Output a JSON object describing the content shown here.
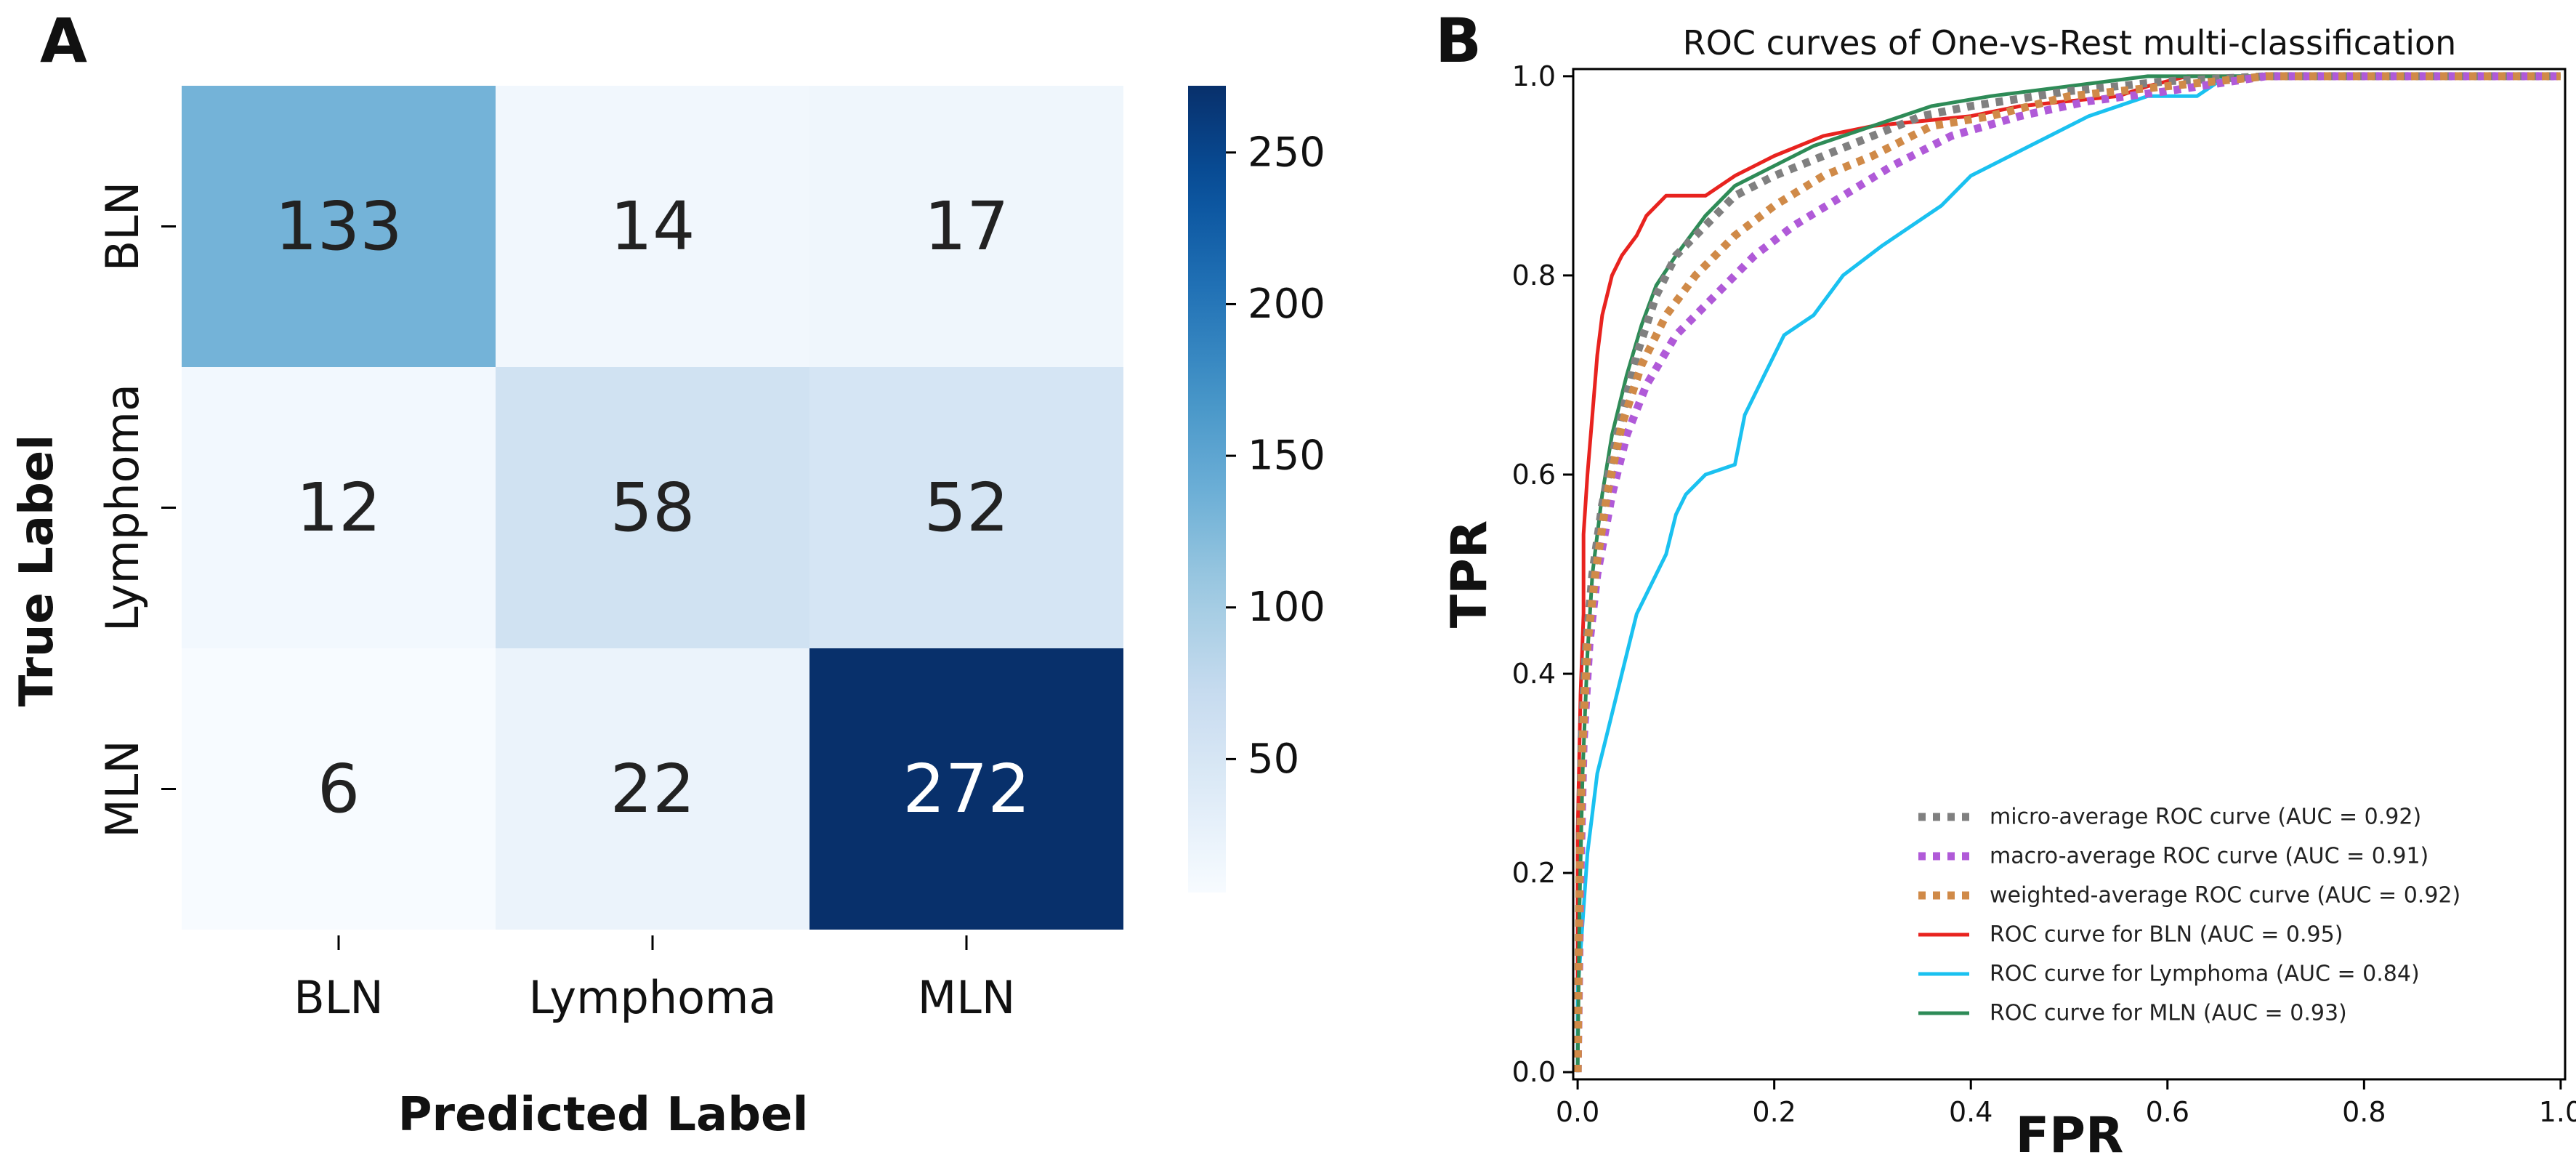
{
  "chart_data": [
    {
      "type": "heatmap",
      "panel_label": "A",
      "row_labels": [
        "BLN",
        "Lymphoma",
        "MLN"
      ],
      "col_labels": [
        "BLN",
        "Lymphoma",
        "MLN"
      ],
      "values": [
        [
          133,
          14,
          17
        ],
        [
          12,
          58,
          52
        ],
        [
          6,
          22,
          272
        ]
      ],
      "xlabel": "Predicted Label",
      "ylabel": "True Label",
      "colorbar": {
        "ticks": [
          50,
          100,
          150,
          200,
          250
        ],
        "tick_labels": [
          "50",
          "100",
          "150",
          "200",
          "250"
        ],
        "range": [
          6,
          272
        ],
        "colormap": "Blues"
      }
    },
    {
      "type": "line",
      "panel_label": "B",
      "title": "ROC curves of One-vs-Rest multi-classification",
      "xlabel": "FPR",
      "ylabel": "TPR",
      "xlim": [
        0.0,
        1.0
      ],
      "ylim": [
        0.0,
        1.0
      ],
      "xticks": [
        "0.0",
        "0.2",
        "0.4",
        "0.6",
        "0.8",
        "1.0"
      ],
      "yticks": [
        "0.0",
        "0.2",
        "0.4",
        "0.6",
        "0.8",
        "1.0"
      ],
      "legend_position": "lower-right",
      "series": [
        {
          "name": "micro-average ROC curve (AUC = 0.92)",
          "color": "#808080",
          "style": "dotted",
          "points": [
            [
              0,
              0
            ],
            [
              0.002,
              0.2
            ],
            [
              0.004,
              0.33
            ],
            [
              0.008,
              0.42
            ],
            [
              0.015,
              0.5
            ],
            [
              0.025,
              0.57
            ],
            [
              0.04,
              0.64
            ],
            [
              0.06,
              0.72
            ],
            [
              0.08,
              0.78
            ],
            [
              0.1,
              0.82
            ],
            [
              0.13,
              0.85
            ],
            [
              0.16,
              0.88
            ],
            [
              0.2,
              0.9
            ],
            [
              0.25,
              0.92
            ],
            [
              0.3,
              0.94
            ],
            [
              0.35,
              0.96
            ],
            [
              0.4,
              0.97
            ],
            [
              0.5,
              0.985
            ],
            [
              0.6,
              0.995
            ],
            [
              0.7,
              1.0
            ],
            [
              1.0,
              1.0
            ]
          ]
        },
        {
          "name": "macro-average ROC curve (AUC = 0.91)",
          "color": "#b05ad8",
          "style": "dotted",
          "points": [
            [
              0,
              0
            ],
            [
              0.003,
              0.2
            ],
            [
              0.006,
              0.33
            ],
            [
              0.012,
              0.43
            ],
            [
              0.02,
              0.5
            ],
            [
              0.035,
              0.58
            ],
            [
              0.05,
              0.64
            ],
            [
              0.07,
              0.69
            ],
            [
              0.1,
              0.74
            ],
            [
              0.14,
              0.78
            ],
            [
              0.18,
              0.82
            ],
            [
              0.22,
              0.85
            ],
            [
              0.27,
              0.88
            ],
            [
              0.32,
              0.91
            ],
            [
              0.38,
              0.94
            ],
            [
              0.45,
              0.96
            ],
            [
              0.52,
              0.975
            ],
            [
              0.6,
              0.985
            ],
            [
              0.7,
              1.0
            ],
            [
              1.0,
              1.0
            ]
          ]
        },
        {
          "name": "weighted-average ROC curve (AUC = 0.92)",
          "color": "#d08a48",
          "style": "dotted",
          "points": [
            [
              0,
              0
            ],
            [
              0.002,
              0.2
            ],
            [
              0.005,
              0.33
            ],
            [
              0.01,
              0.43
            ],
            [
              0.018,
              0.5
            ],
            [
              0.03,
              0.58
            ],
            [
              0.045,
              0.65
            ],
            [
              0.065,
              0.71
            ],
            [
              0.09,
              0.76
            ],
            [
              0.12,
              0.8
            ],
            [
              0.16,
              0.84
            ],
            [
              0.2,
              0.87
            ],
            [
              0.25,
              0.9
            ],
            [
              0.3,
              0.92
            ],
            [
              0.36,
              0.95
            ],
            [
              0.42,
              0.96
            ],
            [
              0.5,
              0.98
            ],
            [
              0.6,
              0.99
            ],
            [
              0.7,
              1.0
            ],
            [
              1.0,
              1.0
            ]
          ]
        },
        {
          "name": "ROC curve for BLN (AUC = 0.95)",
          "color": "#e8231f",
          "style": "solid",
          "points": [
            [
              0,
              0
            ],
            [
              0,
              0.24
            ],
            [
              0.003,
              0.38
            ],
            [
              0.006,
              0.46
            ],
            [
              0.006,
              0.54
            ],
            [
              0.01,
              0.6
            ],
            [
              0.015,
              0.66
            ],
            [
              0.02,
              0.72
            ],
            [
              0.025,
              0.76
            ],
            [
              0.035,
              0.8
            ],
            [
              0.045,
              0.82
            ],
            [
              0.06,
              0.84
            ],
            [
              0.07,
              0.86
            ],
            [
              0.09,
              0.88
            ],
            [
              0.13,
              0.88
            ],
            [
              0.16,
              0.9
            ],
            [
              0.2,
              0.92
            ],
            [
              0.25,
              0.94
            ],
            [
              0.3,
              0.95
            ],
            [
              0.4,
              0.96
            ],
            [
              0.45,
              0.97
            ],
            [
              0.55,
              0.98
            ],
            [
              0.58,
              0.99
            ],
            [
              0.62,
              1.0
            ],
            [
              1.0,
              1.0
            ]
          ]
        },
        {
          "name": "ROC curve for Lymphoma (AUC = 0.84)",
          "color": "#1ac1f0",
          "style": "solid",
          "points": [
            [
              0,
              0
            ],
            [
              0,
              0.08
            ],
            [
              0.005,
              0.15
            ],
            [
              0.01,
              0.22
            ],
            [
              0.015,
              0.26
            ],
            [
              0.02,
              0.3
            ],
            [
              0.03,
              0.34
            ],
            [
              0.04,
              0.38
            ],
            [
              0.05,
              0.42
            ],
            [
              0.06,
              0.46
            ],
            [
              0.07,
              0.48
            ],
            [
              0.08,
              0.5
            ],
            [
              0.09,
              0.52
            ],
            [
              0.1,
              0.56
            ],
            [
              0.11,
              0.58
            ],
            [
              0.13,
              0.6
            ],
            [
              0.16,
              0.61
            ],
            [
              0.17,
              0.66
            ],
            [
              0.19,
              0.7
            ],
            [
              0.21,
              0.74
            ],
            [
              0.24,
              0.76
            ],
            [
              0.27,
              0.8
            ],
            [
              0.31,
              0.83
            ],
            [
              0.34,
              0.85
            ],
            [
              0.37,
              0.87
            ],
            [
              0.4,
              0.9
            ],
            [
              0.44,
              0.92
            ],
            [
              0.48,
              0.94
            ],
            [
              0.52,
              0.96
            ],
            [
              0.58,
              0.98
            ],
            [
              0.63,
              0.98
            ],
            [
              0.66,
              1.0
            ],
            [
              1.0,
              1.0
            ]
          ]
        },
        {
          "name": "ROC curve for MLN (AUC = 0.93)",
          "color": "#2e8b57",
          "style": "solid",
          "points": [
            [
              0,
              0
            ],
            [
              0.002,
              0.17
            ],
            [
              0.005,
              0.3
            ],
            [
              0.01,
              0.42
            ],
            [
              0.015,
              0.5
            ],
            [
              0.025,
              0.58
            ],
            [
              0.035,
              0.64
            ],
            [
              0.05,
              0.7
            ],
            [
              0.065,
              0.75
            ],
            [
              0.08,
              0.79
            ],
            [
              0.1,
              0.82
            ],
            [
              0.13,
              0.86
            ],
            [
              0.16,
              0.89
            ],
            [
              0.2,
              0.91
            ],
            [
              0.24,
              0.93
            ],
            [
              0.3,
              0.95
            ],
            [
              0.36,
              0.97
            ],
            [
              0.42,
              0.98
            ],
            [
              0.5,
              0.99
            ],
            [
              0.58,
              1.0
            ],
            [
              1.0,
              1.0
            ]
          ]
        }
      ]
    }
  ]
}
